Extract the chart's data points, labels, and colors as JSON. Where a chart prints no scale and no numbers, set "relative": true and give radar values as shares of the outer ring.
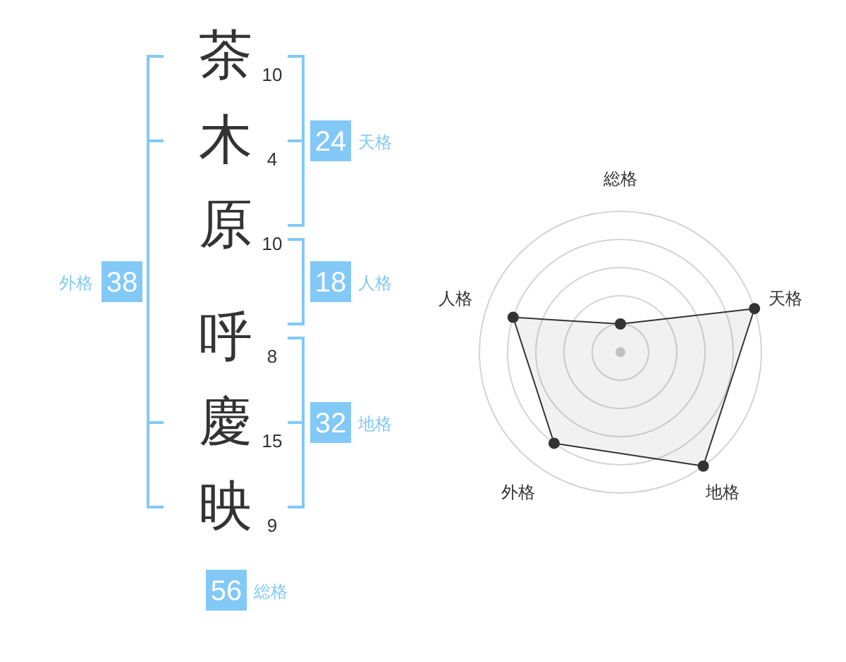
{
  "chart_data": [
    {
      "type": "other",
      "categories": [
        "茶",
        "木",
        "原",
        "呼",
        "慶",
        "映"
      ],
      "values": [
        10,
        4,
        10,
        8,
        15,
        9
      ],
      "data_labels": true,
      "color": "#333333"
    },
    {
      "type": "other",
      "categories": [
        "天格",
        "人格",
        "地格",
        "外格",
        "総格"
      ],
      "values": [
        24,
        18,
        32,
        38,
        56
      ],
      "data_labels": true,
      "color": "#82c9f7"
    },
    {
      "type": "radar",
      "categories": [
        "総格",
        "天格",
        "地格",
        "外格",
        "人格"
      ],
      "relative": true,
      "grid": true,
      "marker": "circle",
      "series": [
        {
          "color": "#333333",
          "values": [
            0.2,
            1,
            1,
            0.8,
            0.8
          ]
        }
      ]
    }
  ]
}
